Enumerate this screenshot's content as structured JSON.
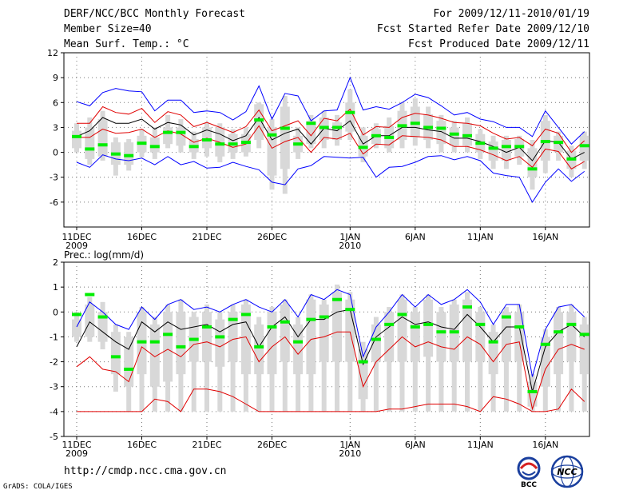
{
  "header": {
    "title": "DERF/NCC/BCC Monthly Forecast",
    "member_size": "Member Size=40",
    "variable": "Mean Surf. Temp.: °C",
    "period": "For 2009/12/11-2010/01/19",
    "started": "Fcst Started Refer Date 2009/12/10",
    "produced": "Fcst Produced Date 2009/12/11"
  },
  "footer": {
    "url": "http://cmdp.ncc.cma.gov.cn",
    "grads": "GrADS: COLA/IGES",
    "logo_bcc": "BCC",
    "logo_ncc": "NCC"
  },
  "colors": {
    "max_min": "#0000ff",
    "mean": "#000000",
    "std": "#e00000",
    "median": "#00ee00",
    "box": "#d8d8d8",
    "grid": "#777777"
  },
  "chart_data": [
    {
      "type": "line",
      "title": "Mean Surf. Temp.: °C",
      "xlabel": "",
      "ylabel": "",
      "ylim": [
        -9,
        12
      ],
      "yticks": [
        12,
        9,
        6,
        3,
        0,
        -3,
        -6
      ],
      "grid": true,
      "x_tick_labels": [
        {
          "day": 1,
          "label": "11DEC",
          "sub": "2009"
        },
        {
          "day": 6,
          "label": "16DEC",
          "sub": ""
        },
        {
          "day": 11,
          "label": "21DEC",
          "sub": ""
        },
        {
          "day": 16,
          "label": "26DEC",
          "sub": ""
        },
        {
          "day": 22,
          "label": "1JAN",
          "sub": "2010"
        },
        {
          "day": 27,
          "label": "6JAN",
          "sub": ""
        },
        {
          "day": 32,
          "label": "11JAN",
          "sub": ""
        },
        {
          "day": 37,
          "label": "16JAN",
          "sub": ""
        }
      ],
      "days": [
        1,
        2,
        3,
        4,
        5,
        6,
        7,
        8,
        9,
        10,
        11,
        12,
        13,
        14,
        15,
        16,
        17,
        18,
        19,
        20,
        21,
        22,
        23,
        24,
        25,
        26,
        27,
        28,
        29,
        30,
        31,
        32,
        33,
        34,
        35,
        36,
        37,
        38,
        39,
        40
      ],
      "series": [
        {
          "name": "max",
          "values": [
            6.1,
            5.6,
            7.2,
            7.7,
            7.4,
            7.3,
            5.0,
            6.3,
            6.3,
            4.8,
            5.0,
            4.8,
            3.9,
            4.9,
            8.0,
            4.0,
            7.1,
            6.8,
            3.8,
            5.0,
            5.1,
            9.0,
            5.1,
            5.5,
            5.2,
            6.0,
            7.0,
            6.6,
            5.6,
            4.5,
            4.8,
            4.0,
            3.7,
            3.0,
            3.0,
            1.9,
            5.0,
            3.0,
            1.0,
            2.5
          ]
        },
        {
          "name": "std_upper",
          "values": [
            3.5,
            3.5,
            5.5,
            4.8,
            4.6,
            5.3,
            3.6,
            4.9,
            4.5,
            3.1,
            3.6,
            3.0,
            2.4,
            3.1,
            5.1,
            2.6,
            3.2,
            3.8,
            2.0,
            4.1,
            3.8,
            5.2,
            2.1,
            3.1,
            3.0,
            4.2,
            4.7,
            4.5,
            4.1,
            3.6,
            3.5,
            3.2,
            2.3,
            1.6,
            1.8,
            0.8,
            2.8,
            2.3,
            0.0,
            1.4
          ]
        },
        {
          "name": "mean",
          "values": [
            1.9,
            2.6,
            4.2,
            3.5,
            3.5,
            4.0,
            2.8,
            3.6,
            3.3,
            2.1,
            2.7,
            2.2,
            1.4,
            2.0,
            4.2,
            1.5,
            2.3,
            2.8,
            1.0,
            2.9,
            2.6,
            3.8,
            1.0,
            2.0,
            2.0,
            3.0,
            3.0,
            2.7,
            2.5,
            1.7,
            1.7,
            1.3,
            0.7,
            0.0,
            0.6,
            -1.0,
            1.4,
            1.2,
            -0.8,
            0.0
          ]
        },
        {
          "name": "std_lower",
          "values": [
            1.8,
            1.8,
            2.8,
            2.3,
            2.4,
            2.8,
            1.8,
            2.6,
            2.2,
            1.2,
            1.7,
            1.2,
            0.6,
            1.0,
            3.2,
            0.5,
            1.3,
            1.8,
            0.0,
            1.8,
            1.6,
            2.3,
            -0.2,
            1.0,
            0.9,
            2.0,
            1.9,
            1.8,
            1.5,
            0.7,
            0.7,
            0.3,
            -0.3,
            -1.0,
            -0.5,
            -1.8,
            0.4,
            0.1,
            -2.0,
            -1.1
          ]
        },
        {
          "name": "min",
          "values": [
            -1.2,
            -1.8,
            -0.3,
            -0.8,
            -1.0,
            -0.7,
            -1.5,
            -0.5,
            -1.5,
            -1.1,
            -1.9,
            -1.8,
            -1.2,
            -1.7,
            -2.1,
            -3.6,
            -3.9,
            -2.0,
            -1.6,
            -0.5,
            -0.6,
            -0.7,
            -0.6,
            -3.0,
            -1.8,
            -1.7,
            -1.2,
            -0.5,
            -0.4,
            -0.9,
            -0.5,
            -1.0,
            -2.5,
            -2.8,
            -3.0,
            -6.0,
            -3.6,
            -2.0,
            -3.5,
            -2.3
          ]
        },
        {
          "name": "median",
          "values": [
            1.9,
            0.4,
            0.9,
            -0.2,
            -0.4,
            1.1,
            0.7,
            2.4,
            2.4,
            0.7,
            1.5,
            1.0,
            1.0,
            1.2,
            3.9,
            2.1,
            2.9,
            1.0,
            3.5,
            3.0,
            3.0,
            4.8,
            0.6,
            2.0,
            1.8,
            3.2,
            3.5,
            3.0,
            2.9,
            2.2,
            2.0,
            1.1,
            0.5,
            0.7,
            0.7,
            -2.0,
            1.3,
            1.2,
            -0.8,
            0.8
          ]
        },
        {
          "name": "box_upper",
          "values": [
            2.6,
            3.0,
            4.0,
            1.2,
            1.2,
            2.0,
            1.8,
            3.0,
            3.0,
            1.6,
            3.0,
            3.0,
            2.2,
            2.2,
            5.8,
            3.0,
            5.5,
            2.0,
            3.8,
            4.2,
            3.6,
            6.0,
            2.0,
            2.8,
            3.2,
            5.0,
            5.5,
            4.6,
            3.8,
            3.0,
            3.5,
            2.2,
            1.3,
            1.5,
            1.6,
            0.5,
            3.8,
            2.0,
            0.2,
            2.0
          ]
        },
        {
          "name": "box_lower",
          "values": [
            0.5,
            -0.8,
            -0.5,
            -1.5,
            -1.5,
            0.0,
            0.0,
            1.0,
            0.8,
            0.0,
            0.5,
            -0.5,
            0.0,
            0.0,
            1.5,
            -2.8,
            -2.0,
            0.0,
            1.0,
            1.5,
            1.5,
            2.5,
            -0.5,
            1.0,
            0.5,
            1.5,
            1.8,
            1.5,
            1.0,
            0.8,
            0.8,
            0.0,
            -1.0,
            -1.0,
            -0.5,
            -3.0,
            -1.0,
            0.0,
            -2.0,
            -1.0
          ]
        },
        {
          "name": "whisker_upper",
          "values": [
            3.5,
            4.2,
            5.0,
            1.8,
            1.6,
            2.8,
            3.0,
            4.5,
            4.0,
            2.5,
            3.6,
            3.5,
            2.8,
            3.0,
            6.0,
            4.0,
            6.8,
            3.0,
            4.5,
            5.0,
            4.5,
            7.6,
            3.0,
            3.5,
            4.2,
            6.0,
            6.5,
            5.5,
            4.5,
            3.8,
            4.2,
            2.8,
            2.0,
            2.0,
            2.0,
            1.5,
            4.5,
            2.5,
            0.8,
            2.5
          ]
        },
        {
          "name": "whisker_lower",
          "values": [
            0.0,
            -1.5,
            -1.0,
            -2.8,
            -2.2,
            -0.6,
            -0.8,
            0.5,
            0.0,
            -0.8,
            -0.5,
            -1.2,
            -0.8,
            -0.5,
            0.5,
            -4.5,
            -5.0,
            -0.8,
            0.5,
            0.5,
            0.8,
            1.5,
            -1.2,
            0.5,
            0.0,
            0.5,
            0.8,
            0.5,
            0.0,
            0.0,
            0.0,
            -0.8,
            -2.0,
            -2.0,
            -1.5,
            -4.5,
            -2.5,
            -1.0,
            -3.0,
            -2.0
          ]
        }
      ]
    },
    {
      "type": "line",
      "title": "Prec.: log(mm/d)",
      "xlabel": "",
      "ylabel": "",
      "ylim": [
        -5,
        2
      ],
      "yticks": [
        2,
        1,
        0,
        -1,
        -2,
        -3,
        -4,
        -5
      ],
      "grid": true,
      "x_tick_labels": [
        {
          "day": 1,
          "label": "11DEC",
          "sub": "2009"
        },
        {
          "day": 6,
          "label": "16DEC",
          "sub": ""
        },
        {
          "day": 11,
          "label": "21DEC",
          "sub": ""
        },
        {
          "day": 16,
          "label": "26DEC",
          "sub": ""
        },
        {
          "day": 22,
          "label": "1JAN",
          "sub": "2010"
        },
        {
          "day": 27,
          "label": "6JAN",
          "sub": ""
        },
        {
          "day": 32,
          "label": "11JAN",
          "sub": ""
        },
        {
          "day": 37,
          "label": "16JAN",
          "sub": ""
        }
      ],
      "days": [
        1,
        2,
        3,
        4,
        5,
        6,
        7,
        8,
        9,
        10,
        11,
        12,
        13,
        14,
        15,
        16,
        17,
        18,
        19,
        20,
        21,
        22,
        23,
        24,
        25,
        26,
        27,
        28,
        29,
        30,
        31,
        32,
        33,
        34,
        35,
        36,
        37,
        38,
        39,
        40
      ],
      "series": [
        {
          "name": "max",
          "values": [
            -0.6,
            0.4,
            0.0,
            -0.5,
            -0.7,
            0.2,
            -0.3,
            0.3,
            0.5,
            0.1,
            0.2,
            0.0,
            0.3,
            0.5,
            0.2,
            0.0,
            0.5,
            -0.2,
            0.7,
            0.5,
            0.9,
            0.7,
            -1.8,
            -0.6,
            0.0,
            0.7,
            0.2,
            0.7,
            0.3,
            0.5,
            0.9,
            0.4,
            -0.5,
            0.3,
            0.3,
            -2.6,
            -0.7,
            0.2,
            0.3,
            -0.2
          ]
        },
        {
          "name": "mean",
          "values": [
            -1.4,
            -0.4,
            -0.8,
            -1.2,
            -1.5,
            -0.4,
            -0.8,
            -0.4,
            -0.7,
            -0.6,
            -0.5,
            -0.8,
            -0.5,
            -0.4,
            -1.4,
            -0.6,
            -0.2,
            -1.0,
            -0.3,
            -0.3,
            0.0,
            0.1,
            -2.1,
            -1.0,
            -0.6,
            -0.2,
            -0.5,
            -0.4,
            -0.6,
            -0.7,
            -0.1,
            -0.6,
            -1.2,
            -0.6,
            -0.6,
            -3.2,
            -1.4,
            -0.8,
            -0.5,
            -1.0
          ]
        },
        {
          "name": "std_lower",
          "values": [
            -2.2,
            -1.8,
            -2.3,
            -2.4,
            -2.8,
            -1.4,
            -1.8,
            -1.5,
            -1.8,
            -1.3,
            -1.2,
            -1.4,
            -1.1,
            -1.0,
            -2.0,
            -1.4,
            -1.0,
            -1.7,
            -1.1,
            -1.0,
            -0.8,
            -0.8,
            -3.0,
            -2.0,
            -1.5,
            -1.0,
            -1.4,
            -1.2,
            -1.4,
            -1.5,
            -1.0,
            -1.3,
            -2.0,
            -1.3,
            -1.2,
            -3.9,
            -2.3,
            -1.5,
            -1.3,
            -1.5
          ]
        },
        {
          "name": "std_lower2",
          "values": [
            -4.0,
            -4.0,
            -4.0,
            -4.0,
            -4.0,
            -4.0,
            -3.5,
            -3.6,
            -4.0,
            -3.1,
            -3.1,
            -3.2,
            -3.4,
            -3.7,
            -4.0,
            -4.0,
            -4.0,
            -4.0,
            -4.0,
            -4.0,
            -4.0,
            -4.0,
            -4.0,
            -4.0,
            -3.9,
            -3.9,
            -3.8,
            -3.7,
            -3.7,
            -3.7,
            -3.8,
            -4.0,
            -3.4,
            -3.5,
            -3.7,
            -4.0,
            -4.0,
            -3.9,
            -3.1,
            -3.6
          ]
        },
        {
          "name": "median",
          "values": [
            -0.1,
            0.7,
            -0.2,
            -1.8,
            -2.3,
            -1.2,
            -1.2,
            -0.9,
            -1.4,
            -1.1,
            -0.6,
            -1.0,
            -0.3,
            -0.1,
            -1.4,
            -0.6,
            -0.4,
            -1.2,
            -0.3,
            -0.2,
            0.5,
            0.1,
            -2.0,
            -1.1,
            -0.5,
            -0.1,
            -0.6,
            -0.5,
            -0.8,
            -0.8,
            0.2,
            -0.5,
            -1.2,
            -0.2,
            -0.6,
            -3.2,
            -1.3,
            -0.8,
            -0.5,
            -0.9
          ]
        },
        {
          "name": "box_upper",
          "values": [
            -0.3,
            0.3,
            0.0,
            -0.8,
            -1.0,
            0.0,
            -0.5,
            0.0,
            0.0,
            -0.2,
            0.0,
            -0.3,
            0.0,
            0.3,
            -0.5,
            0.0,
            0.3,
            -0.5,
            0.5,
            0.3,
            0.8,
            0.5,
            -1.5,
            -0.5,
            0.0,
            0.5,
            0.0,
            0.5,
            0.0,
            0.3,
            0.5,
            0.0,
            -0.8,
            0.0,
            0.0,
            -2.8,
            -1.0,
            0.0,
            0.0,
            -0.5
          ]
        },
        {
          "name": "box_lower",
          "values": [
            -1.0,
            -1.0,
            -1.2,
            -2.5,
            -3.0,
            -2.5,
            -3.0,
            -2.8,
            -2.5,
            -2.0,
            -2.0,
            -2.2,
            -2.0,
            -2.5,
            -2.5,
            -2.5,
            -2.0,
            -2.5,
            -2.5,
            -2.0,
            -2.0,
            -2.0,
            -3.5,
            -2.0,
            -2.0,
            -2.0,
            -2.0,
            -1.8,
            -2.0,
            -2.0,
            -2.0,
            -2.0,
            -2.5,
            -2.0,
            -2.0,
            -3.8,
            -3.0,
            -2.5,
            -2.0,
            -2.5
          ]
        },
        {
          "name": "whisker_upper",
          "values": [
            0.0,
            0.6,
            0.4,
            -0.5,
            -0.8,
            0.2,
            -0.2,
            0.3,
            0.5,
            0.0,
            0.3,
            0.0,
            0.3,
            0.5,
            -0.2,
            0.2,
            0.5,
            -0.2,
            0.7,
            0.5,
            1.1,
            0.8,
            -1.2,
            -0.2,
            0.2,
            0.7,
            0.2,
            0.7,
            0.2,
            0.5,
            0.8,
            0.2,
            -0.5,
            0.2,
            0.3,
            -2.5,
            -0.7,
            0.2,
            0.3,
            -0.2
          ]
        },
        {
          "name": "whisker_lower",
          "values": [
            -1.2,
            -1.2,
            -1.5,
            -3.2,
            -4.0,
            -4.0,
            -4.0,
            -4.0,
            -4.0,
            -4.0,
            -4.0,
            -4.0,
            -4.0,
            -4.0,
            -4.0,
            -4.0,
            -4.0,
            -4.0,
            -4.0,
            -4.0,
            -4.0,
            -4.0,
            -4.0,
            -4.0,
            -4.0,
            -4.0,
            -4.0,
            -4.0,
            -4.0,
            -4.0,
            -4.0,
            -4.0,
            -4.0,
            -4.0,
            -4.0,
            -4.0,
            -4.0,
            -4.0,
            -4.0,
            -4.0
          ]
        }
      ]
    }
  ]
}
